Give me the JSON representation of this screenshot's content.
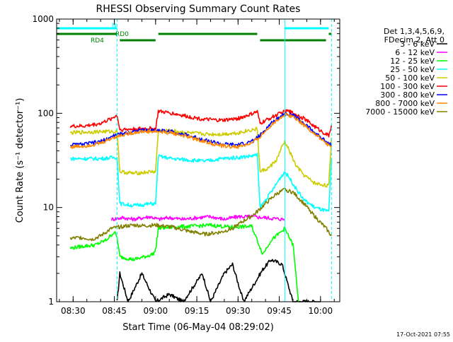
{
  "chart_data": {
    "type": "line",
    "title": "RHESSI Observing Summary Count Rates",
    "xlabel": "Start Time (06-May-04 08:29:02)",
    "ylabel": "Count Rate (s⁻¹ detector⁻¹)",
    "y_scale": "log",
    "ylim": [
      1,
      1000
    ],
    "xlim": [
      "08:24",
      "10:07"
    ],
    "x_ticks": [
      "08:30",
      "08:45",
      "09:00",
      "09:15",
      "09:30",
      "09:45",
      "10:00"
    ],
    "y_ticks": [
      "1",
      "10",
      "100",
      "1000"
    ],
    "grid": false,
    "legend_position": "right",
    "legend_header": [
      "Det 1,3,4,5,6,9,",
      "FDecim 2, Att 0"
    ],
    "series": [
      {
        "name": "3 - 6 keV",
        "color": "#000000",
        "points": [
          [
            "08:46",
            1
          ],
          [
            "08:47",
            2
          ],
          [
            "08:50",
            1
          ],
          [
            "08:55",
            2
          ],
          [
            "09:00",
            1
          ],
          [
            "09:05",
            1.2
          ],
          [
            "09:10",
            1
          ],
          [
            "09:17",
            2
          ],
          [
            "09:20",
            1
          ],
          [
            "09:25",
            2
          ],
          [
            "09:28",
            2.5
          ],
          [
            "09:32",
            1
          ],
          [
            "09:39",
            2.2
          ],
          [
            "09:42",
            2.8
          ],
          [
            "09:46",
            2.5
          ],
          [
            "09:50",
            1
          ],
          [
            "10:00",
            1
          ]
        ]
      },
      {
        "name": "6 - 12 keV",
        "color": "#ff00ff",
        "points": [
          [
            "08:44",
            7.5
          ],
          [
            "08:48",
            7.8
          ],
          [
            "08:52",
            7.5
          ],
          [
            "08:58",
            8
          ],
          [
            "09:01",
            7.5
          ],
          [
            "09:05",
            7.8
          ],
          [
            "09:10",
            7.5
          ],
          [
            "09:15",
            7.8
          ],
          [
            "09:20",
            8
          ],
          [
            "09:25",
            7.5
          ],
          [
            "09:30",
            8
          ],
          [
            "09:35",
            8
          ],
          [
            "09:40",
            7.8
          ],
          [
            "09:44",
            7.6
          ],
          [
            "09:47",
            7.5
          ]
        ]
      },
      {
        "name": "12 - 25 keV",
        "color": "#00ff00",
        "points": [
          [
            "08:29",
            3.7
          ],
          [
            "08:34",
            3.9
          ],
          [
            "08:38",
            4
          ],
          [
            "08:42",
            4.5
          ],
          [
            "08:45",
            5.5
          ],
          [
            "08:46",
            4.8
          ],
          [
            "08:47",
            3
          ],
          [
            "08:52",
            2.8
          ],
          [
            "08:56",
            3
          ],
          [
            "08:59",
            3.2
          ],
          [
            "09:00",
            3.5
          ],
          [
            "09:01",
            6
          ],
          [
            "09:06",
            6.2
          ],
          [
            "09:12",
            6.3
          ],
          [
            "09:20",
            6.5
          ],
          [
            "09:27",
            6.2
          ],
          [
            "09:35",
            6.3
          ],
          [
            "09:39",
            3.2
          ],
          [
            "09:42",
            4.5
          ],
          [
            "09:44",
            5
          ],
          [
            "09:47",
            6
          ],
          [
            "09:50",
            4
          ],
          [
            "09:52",
            1
          ]
        ]
      },
      {
        "name": "25 - 50 keV",
        "color": "#00ffff",
        "points": [
          [
            "08:29",
            33
          ],
          [
            "08:34",
            33
          ],
          [
            "08:40",
            33
          ],
          [
            "08:45",
            34
          ],
          [
            "08:46",
            34
          ],
          [
            "08:47",
            11
          ],
          [
            "08:52",
            10.5
          ],
          [
            "08:59",
            11
          ],
          [
            "09:00",
            11
          ],
          [
            "09:01",
            35
          ],
          [
            "09:06",
            33
          ],
          [
            "09:12",
            32
          ],
          [
            "09:18",
            31
          ],
          [
            "09:24",
            33
          ],
          [
            "09:30",
            34
          ],
          [
            "09:34",
            35
          ],
          [
            "09:37",
            36
          ],
          [
            "09:38",
            10
          ],
          [
            "09:40",
            12
          ],
          [
            "09:43",
            16
          ],
          [
            "09:45",
            20
          ],
          [
            "09:47",
            24
          ],
          [
            "09:49",
            20
          ],
          [
            "09:51",
            16
          ],
          [
            "09:54",
            12
          ],
          [
            "09:58",
            10
          ],
          [
            "10:03",
            9
          ],
          [
            "10:04",
            33
          ]
        ]
      },
      {
        "name": "50 - 100 keV",
        "color": "#cccc00",
        "points": [
          [
            "08:29",
            62
          ],
          [
            "08:34",
            63
          ],
          [
            "08:40",
            64
          ],
          [
            "08:45",
            64
          ],
          [
            "08:46",
            65
          ],
          [
            "08:47",
            24
          ],
          [
            "08:52",
            23
          ],
          [
            "08:59",
            24
          ],
          [
            "09:00",
            24
          ],
          [
            "09:01",
            65
          ],
          [
            "09:06",
            65
          ],
          [
            "09:12",
            62
          ],
          [
            "09:18",
            60
          ],
          [
            "09:24",
            60
          ],
          [
            "09:30",
            62
          ],
          [
            "09:34",
            66
          ],
          [
            "09:37",
            68
          ],
          [
            "09:38",
            24
          ],
          [
            "09:41",
            26
          ],
          [
            "09:44",
            32
          ],
          [
            "09:46",
            44
          ],
          [
            "09:47",
            50
          ],
          [
            "09:49",
            38
          ],
          [
            "09:51",
            28
          ],
          [
            "09:54",
            22
          ],
          [
            "09:58",
            18
          ],
          [
            "10:03",
            17
          ],
          [
            "10:04",
            55
          ]
        ]
      },
      {
        "name": "100 - 300 keV",
        "color": "#ff0000",
        "points": [
          [
            "08:29",
            73
          ],
          [
            "08:34",
            73
          ],
          [
            "08:40",
            78
          ],
          [
            "08:44",
            88
          ],
          [
            "08:45",
            92
          ],
          [
            "08:46",
            95
          ],
          [
            "08:47",
            67
          ],
          [
            "08:52",
            68
          ],
          [
            "08:58",
            69
          ],
          [
            "09:00",
            68
          ],
          [
            "09:01",
            105
          ],
          [
            "09:06",
            100
          ],
          [
            "09:12",
            92
          ],
          [
            "09:18",
            86
          ],
          [
            "09:24",
            84
          ],
          [
            "09:30",
            88
          ],
          [
            "09:34",
            96
          ],
          [
            "09:37",
            104
          ],
          [
            "09:38",
            78
          ],
          [
            "09:42",
            90
          ],
          [
            "09:46",
            102
          ],
          [
            "09:48",
            106
          ],
          [
            "09:51",
            98
          ],
          [
            "09:54",
            88
          ],
          [
            "09:58",
            72
          ],
          [
            "10:02",
            60
          ],
          [
            "10:03",
            58
          ],
          [
            "10:04",
            75
          ]
        ]
      },
      {
        "name": "300 - 800 keV",
        "color": "#0000ff",
        "points": [
          [
            "08:29",
            46
          ],
          [
            "08:34",
            47
          ],
          [
            "08:40",
            50
          ],
          [
            "08:45",
            58
          ],
          [
            "08:50",
            63
          ],
          [
            "08:55",
            66
          ],
          [
            "09:00",
            66
          ],
          [
            "09:06",
            64
          ],
          [
            "09:12",
            58
          ],
          [
            "09:18",
            52
          ],
          [
            "09:24",
            47
          ],
          [
            "09:30",
            46
          ],
          [
            "09:35",
            50
          ],
          [
            "09:38",
            58
          ],
          [
            "09:42",
            78
          ],
          [
            "09:46",
            96
          ],
          [
            "09:48",
            100
          ],
          [
            "09:51",
            92
          ],
          [
            "09:55",
            74
          ],
          [
            "09:58",
            62
          ],
          [
            "10:02",
            50
          ],
          [
            "10:04",
            46
          ]
        ]
      },
      {
        "name": "800 - 7000 keV",
        "color": "#ff8800",
        "points": [
          [
            "08:29",
            44
          ],
          [
            "08:34",
            45
          ],
          [
            "08:40",
            48
          ],
          [
            "08:45",
            56
          ],
          [
            "08:50",
            61
          ],
          [
            "08:55",
            64
          ],
          [
            "09:00",
            64
          ],
          [
            "09:06",
            62
          ],
          [
            "09:12",
            56
          ],
          [
            "09:18",
            50
          ],
          [
            "09:24",
            45
          ],
          [
            "09:30",
            44
          ],
          [
            "09:35",
            48
          ],
          [
            "09:38",
            56
          ],
          [
            "09:42",
            75
          ],
          [
            "09:46",
            93
          ],
          [
            "09:48",
            97
          ],
          [
            "09:51",
            89
          ],
          [
            "09:55",
            71
          ],
          [
            "09:58",
            60
          ],
          [
            "10:02",
            48
          ],
          [
            "10:04",
            44
          ]
        ]
      },
      {
        "name": "7000 - 15000 keV",
        "color": "#808000",
        "points": [
          [
            "08:29",
            4.7
          ],
          [
            "08:33",
            4.8
          ],
          [
            "08:37",
            4.6
          ],
          [
            "08:40",
            5
          ],
          [
            "08:44",
            6
          ],
          [
            "08:48",
            6.3
          ],
          [
            "08:52",
            6.5
          ],
          [
            "08:56",
            6.4
          ],
          [
            "09:00",
            6.5
          ],
          [
            "09:06",
            6.2
          ],
          [
            "09:12",
            5.6
          ],
          [
            "09:18",
            5.2
          ],
          [
            "09:24",
            5.5
          ],
          [
            "09:28",
            6
          ],
          [
            "09:32",
            7.2
          ],
          [
            "09:36",
            8.5
          ],
          [
            "09:40",
            11
          ],
          [
            "09:44",
            14
          ],
          [
            "09:47",
            15.5
          ],
          [
            "09:50",
            14.5
          ],
          [
            "09:54",
            11
          ],
          [
            "09:58",
            8
          ],
          [
            "10:02",
            6
          ],
          [
            "10:04",
            5
          ]
        ]
      }
    ],
    "status_bars": [
      {
        "label": "N",
        "color": "#00ffff",
        "segments": [
          [
            "08:24",
            "08:46"
          ],
          [
            "09:47",
            "10:03"
          ]
        ],
        "lane": 0
      },
      {
        "label": "RD0",
        "color": "#008000",
        "segments": [
          [
            "08:24",
            "08:46"
          ],
          [
            "09:01",
            "09:37"
          ],
          [
            "10:03",
            "10:04"
          ]
        ],
        "lane": 1
      },
      {
        "label": "RD4",
        "color": "#008000",
        "segments": [
          [
            "08:47",
            "09:00"
          ],
          [
            "09:38",
            "10:02"
          ]
        ],
        "lane": 2
      }
    ],
    "vertical_lines": [
      {
        "x": "08:24",
        "color": "#00ffff",
        "style": "solid"
      },
      {
        "x": "08:46",
        "color": "#00ffff",
        "style": "dashed"
      },
      {
        "x": "09:47",
        "color": "#00ffff",
        "style": "solid"
      },
      {
        "x": "10:04",
        "color": "#00ffff",
        "style": "dashed"
      }
    ],
    "footer_stamp": "17-Oct-2021 07:55"
  }
}
